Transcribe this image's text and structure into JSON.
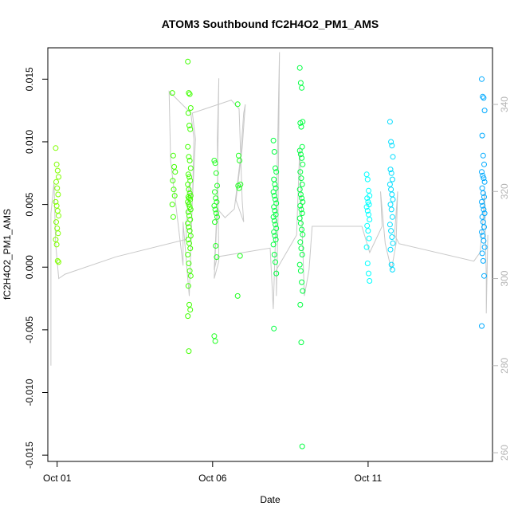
{
  "chart_data": {
    "type": "scatter",
    "title": "ATOM3 Southbound fC2H4O2_PM1_AMS",
    "xlabel": "Date",
    "ylabel": "fC2H4O2_PM1_AMS",
    "x_ticks": [
      "Oct 01",
      "Oct 06",
      "Oct 11"
    ],
    "y_ticks": [
      "-0.015",
      "-0.010",
      "-0.005",
      "0.000",
      "0.005",
      "0.010",
      "0.015"
    ],
    "y_right_ticks": [
      "260",
      "280",
      "300",
      "320",
      "340"
    ],
    "x_range_days": [
      0.7,
      15.0
    ],
    "ylim": [
      -0.0155,
      0.0175
    ],
    "y_right_lim": [
      258,
      353
    ],
    "right_axis_color": "#b4b4b4",
    "line_color": "#c8c8c8",
    "clusters": [
      {
        "x": 1.0,
        "color": "#80ff00",
        "values": [
          0.0095,
          0.0082,
          0.0077,
          0.0072,
          0.0068,
          0.0063,
          0.0058,
          0.0052,
          0.0049,
          0.0045,
          0.0041,
          0.0036,
          0.0031,
          0.0027,
          0.0022,
          0.0018,
          0.0005,
          0.0004
        ]
      },
      {
        "x": 4.75,
        "color": "#40ff00",
        "values": [
          0.0139,
          0.0089,
          0.008,
          0.0076,
          0.0069,
          0.0062,
          0.0057,
          0.005,
          0.004
        ]
      },
      {
        "x": 5.25,
        "color": "#40ff00",
        "values": [
          0.0164,
          0.0139,
          0.0138,
          0.0127,
          0.0123,
          0.0113,
          0.011,
          0.0096,
          0.0088,
          0.0085,
          0.0079,
          0.0074,
          0.0072,
          0.0069,
          0.0066,
          0.0062,
          0.0059,
          0.0057,
          0.0056,
          0.0055,
          0.0054,
          0.0052,
          0.005,
          0.0048,
          0.0046,
          0.0044,
          0.0041,
          0.0038,
          0.0035,
          0.0032,
          0.0029,
          0.0025,
          0.0022,
          0.0019,
          0.0015,
          0.001,
          0.0003,
          -0.0003,
          -0.0007,
          -0.0015,
          -0.003,
          -0.0034,
          -0.0039,
          -0.0067
        ]
      },
      {
        "x": 6.1,
        "color": "#20ff20",
        "values": [
          0.0085,
          0.0083,
          0.0075,
          0.0065,
          0.006,
          0.0055,
          0.0052,
          0.0049,
          0.0046,
          0.0043,
          0.004,
          0.0036,
          0.0017,
          0.0008,
          -0.0055,
          -0.0059
        ]
      },
      {
        "x": 6.85,
        "color": "#20ff20",
        "values": [
          0.013,
          0.0089,
          0.0085,
          0.0066,
          0.0065,
          0.0063,
          0.0009,
          -0.0023
        ]
      },
      {
        "x": 8.0,
        "color": "#00ff40",
        "values": [
          0.0101,
          0.0092,
          0.0079,
          0.0076,
          0.007,
          0.0066,
          0.0063,
          0.006,
          0.0057,
          0.0054,
          0.0051,
          0.0048,
          0.0045,
          0.0042,
          0.004,
          0.0037,
          0.0034,
          0.0031,
          0.0028,
          0.0025,
          0.0022,
          0.0018,
          0.001,
          0.0004,
          -0.0005,
          -0.0049
        ]
      },
      {
        "x": 8.85,
        "color": "#00ff40",
        "values": [
          0.0159,
          0.0147,
          0.0143,
          0.0116,
          0.0115,
          0.0112,
          0.0096,
          0.0093,
          0.009,
          0.0087,
          0.0082,
          0.0076,
          0.0071,
          0.0066,
          0.0062,
          0.0058,
          0.0055,
          0.0052,
          0.0049,
          0.0046,
          0.0043,
          0.0039,
          0.0035,
          0.003,
          0.0026,
          0.002,
          0.0015,
          0.001,
          0.0002,
          -0.0003,
          -0.0012,
          -0.0019,
          -0.003,
          -0.006,
          -0.0143
        ]
      },
      {
        "x": 11.0,
        "color": "#00ffff",
        "values": [
          0.0074,
          0.007,
          0.0061,
          0.0057,
          0.0055,
          0.0052,
          0.005,
          0.0048,
          0.0045,
          0.0042,
          0.0038,
          0.0033,
          0.0029,
          0.0023,
          0.0016,
          0.0003,
          -0.0005,
          -0.0011
        ]
      },
      {
        "x": 11.75,
        "color": "#00ddff",
        "values": [
          0.0116,
          0.01,
          0.0097,
          0.0088,
          0.0078,
          0.0075,
          0.007,
          0.0066,
          0.0062,
          0.0058,
          0.0054,
          0.005,
          0.0046,
          0.004,
          0.0034,
          0.0029,
          0.0024,
          0.0019,
          0.0014,
          0.0002,
          -0.0002
        ]
      },
      {
        "x": 14.7,
        "color": "#00aaff",
        "values": [
          0.015,
          0.0136,
          0.0135,
          0.0125,
          0.0105,
          0.0089,
          0.0082,
          0.0076,
          0.0073,
          0.0071,
          0.0068,
          0.0063,
          0.0059,
          0.0056,
          0.0052,
          0.0049,
          0.0046,
          0.0043,
          0.004,
          0.0036,
          0.0032,
          0.0028,
          0.0025,
          0.0021,
          0.0016,
          0.0011,
          0.0005,
          -0.0007,
          -0.0047
        ]
      }
    ],
    "trajectory": [
      [
        0.8,
        280
      ],
      [
        0.8,
        315
      ],
      [
        0.9,
        322
      ],
      [
        0.95,
        308
      ],
      [
        1.05,
        300
      ],
      [
        1.25,
        301
      ],
      [
        2.9,
        305
      ],
      [
        5.15,
        309
      ],
      [
        5.15,
        312
      ],
      [
        5.25,
        322
      ],
      [
        5.35,
        318
      ],
      [
        5.4,
        332
      ],
      [
        5.3,
        338
      ],
      [
        4.6,
        343
      ],
      [
        4.65,
        327
      ],
      [
        5.05,
        303
      ],
      [
        5.05,
        313
      ],
      [
        5.25,
        296
      ],
      [
        5.35,
        318
      ],
      [
        5.45,
        332
      ],
      [
        5.35,
        338
      ],
      [
        6.6,
        341
      ],
      [
        6.85,
        339
      ],
      [
        6.95,
        318
      ],
      [
        7.0,
        313
      ],
      [
        6.75,
        318
      ],
      [
        6.95,
        330
      ],
      [
        7.05,
        340
      ],
      [
        7.0,
        338
      ],
      [
        6.9,
        328
      ],
      [
        6.7,
        316
      ],
      [
        6.4,
        314
      ],
      [
        6.15,
        316
      ],
      [
        6.05,
        300
      ],
      [
        6.2,
        304
      ],
      [
        6.15,
        332
      ],
      [
        6.2,
        346
      ],
      [
        6.15,
        318
      ],
      [
        6.05,
        302
      ],
      [
        6.15,
        305
      ],
      [
        7.85,
        307
      ],
      [
        7.95,
        293
      ],
      [
        8.05,
        316
      ],
      [
        8.15,
        352
      ],
      [
        8.1,
        312
      ],
      [
        8.05,
        296
      ],
      [
        8.05,
        302
      ],
      [
        8.7,
        310
      ],
      [
        8.8,
        330
      ],
      [
        8.85,
        318
      ],
      [
        8.95,
        296
      ],
      [
        9.1,
        302
      ],
      [
        9.2,
        312
      ],
      [
        10.8,
        312
      ],
      [
        11.05,
        306
      ],
      [
        11.45,
        312
      ],
      [
        11.4,
        320
      ],
      [
        11.55,
        308
      ],
      [
        11.75,
        302
      ],
      [
        11.9,
        308
      ],
      [
        11.95,
        320
      ],
      [
        11.85,
        310
      ],
      [
        12.0,
        308
      ],
      [
        14.4,
        304
      ],
      [
        14.6,
        306
      ],
      [
        14.7,
        314
      ],
      [
        14.75,
        320
      ],
      [
        14.8,
        300
      ],
      [
        14.8,
        292
      ],
      [
        14.85,
        310
      ]
    ]
  }
}
